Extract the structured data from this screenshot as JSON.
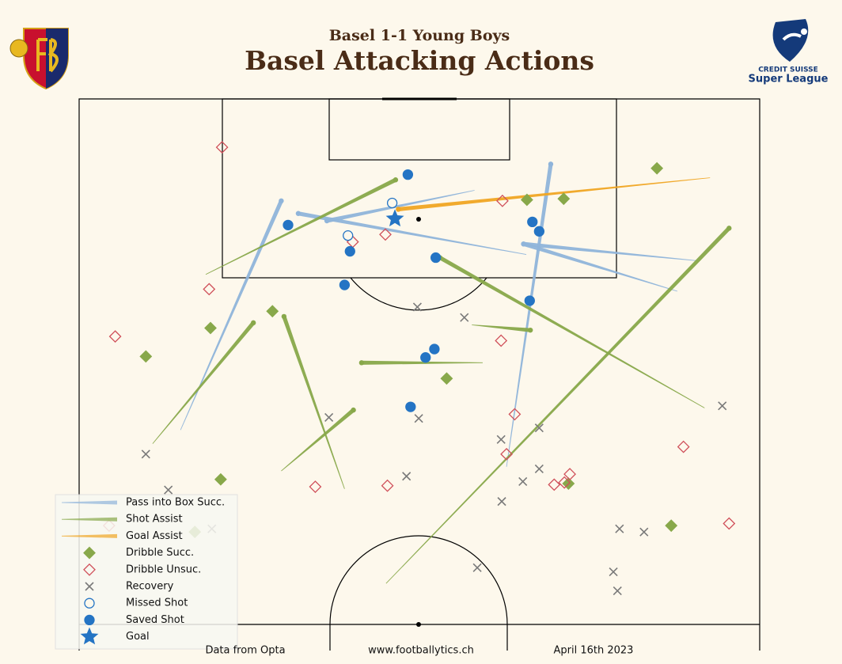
{
  "chart_data": {
    "type": "pitch",
    "subtitle": "Basel 1-1 Young Boys",
    "title": "Basel Attacking Actions",
    "xlim": [
      0,
      100
    ],
    "ylim": [
      50,
      100
    ],
    "lines": [
      {
        "name": "Pass into Box Succ.",
        "color": "#8fb4da",
        "x": [
          14.9,
          58.1,
          65.7,
          90.9,
          62.8,
          87.9
        ],
        "y": [
          68.5,
          91.3,
          85.2,
          84.6,
          65.0,
          81.7
        ],
        "end_x": [
          29.7,
          36.4,
          32.2,
          65.3,
          69.3,
          65.3
        ],
        "end_y": [
          90.3,
          88.4,
          89.1,
          86.2,
          93.8,
          86.2
        ]
      },
      {
        "name": "Shot Assist",
        "color": "#88a84a",
        "x": [
          18.6,
          10.8,
          39.0,
          29.7,
          59.3,
          91.9,
          57.7,
          45.1
        ],
        "y": [
          83.3,
          67.2,
          62.9,
          64.6,
          74.9,
          70.6,
          78.5,
          53.9
        ],
        "end_x": [
          46.5,
          25.6,
          30.1,
          40.3,
          41.5,
          53.0,
          66.3,
          95.5
        ],
        "end_y": [
          92.3,
          78.7,
          79.3,
          70.4,
          74.9,
          84.9,
          78.0,
          87.7
        ]
      },
      {
        "name": "Goal Assist",
        "color": "#f0a523",
        "x": [
          92.7
        ],
        "y": [
          92.5
        ],
        "end_x": [
          46.9
        ],
        "end_y": [
          89.5
        ]
      }
    ],
    "points": [
      {
        "name": "Dribble Succ.",
        "marker": "diamond",
        "color": "#88a84a",
        "x": [
          84.9,
          65.8,
          71.2,
          19.3,
          28.4,
          9.8,
          54.0,
          20.8,
          71.9,
          87.0,
          17.0
        ],
        "y": [
          93.4,
          90.4,
          90.5,
          78.2,
          79.8,
          75.5,
          73.4,
          63.8,
          63.4,
          59.4,
          58.8
        ]
      },
      {
        "name": "Dribble Unsuc.",
        "marker": "diamond-open",
        "color": "#d0505a",
        "x": [
          21.0,
          62.2,
          45.0,
          40.2,
          19.1,
          5.3,
          62.0,
          64.0,
          62.8,
          88.8,
          72.1,
          69.8,
          71.3,
          45.3,
          34.7,
          95.5,
          4.4
        ],
        "y": [
          95.4,
          90.3,
          87.1,
          86.4,
          81.9,
          77.4,
          77.0,
          70.0,
          66.2,
          66.9,
          64.3,
          63.3,
          63.5,
          63.2,
          63.1,
          59.6,
          59.4
        ]
      },
      {
        "name": "Recovery",
        "marker": "x",
        "color": "#7a7a7a",
        "x": [
          49.7,
          56.6,
          36.7,
          49.9,
          94.5,
          62.0,
          67.6,
          9.8,
          13.1,
          48.1,
          65.2,
          67.6,
          62.1,
          19.5,
          79.4,
          83.0,
          58.5,
          78.5,
          79.1
        ],
        "y": [
          80.2,
          79.2,
          69.7,
          69.6,
          70.8,
          67.6,
          68.7,
          66.2,
          62.8,
          64.1,
          63.6,
          64.8,
          61.7,
          59.1,
          59.1,
          58.8,
          55.4,
          55.0,
          53.2
        ]
      },
      {
        "name": "Missed Shot",
        "marker": "circle-open",
        "color": "#2474c4",
        "x": [
          46.0,
          39.5
        ],
        "y": [
          90.1,
          87.0
        ]
      },
      {
        "name": "Saved Shot",
        "marker": "circle",
        "color": "#2474c4",
        "x": [
          48.3,
          30.7,
          39.8,
          52.4,
          66.6,
          67.6,
          39.0,
          66.2,
          52.2,
          50.9,
          48.7
        ],
        "y": [
          92.8,
          88.0,
          85.5,
          84.9,
          88.3,
          87.4,
          82.3,
          80.8,
          76.2,
          75.4,
          70.7
        ]
      },
      {
        "name": "Goal",
        "marker": "star",
        "color": "#2474c4",
        "x": [
          46.4
        ],
        "y": [
          88.6
        ]
      }
    ]
  },
  "footer": [
    "Data from Opta",
    "www.footballytics.ch",
    "April 16th 2023"
  ],
  "league_logo": [
    "CREDIT SUISSE",
    "Super League"
  ]
}
